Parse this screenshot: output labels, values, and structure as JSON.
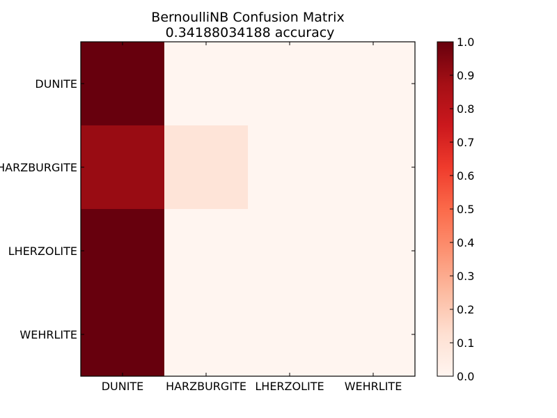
{
  "chart_data": {
    "type": "heatmap",
    "title": "BernoulliNB Confusion Matrix",
    "subtitle": "0.34188034188 accuracy",
    "row_labels": [
      "DUNITE",
      "HARZBURGITE",
      "LHERZOLITE",
      "WEHRLITE"
    ],
    "col_labels": [
      "DUNITE",
      "HARZBURGITE",
      "LHERZOLITE",
      "WEHRLITE"
    ],
    "matrix": [
      [
        1.0,
        0.0,
        0.0,
        0.0
      ],
      [
        0.9,
        0.1,
        0.0,
        0.0
      ],
      [
        1.0,
        0.0,
        0.0,
        0.0
      ],
      [
        1.0,
        0.0,
        0.0,
        0.0
      ]
    ],
    "colormap": "Reds",
    "colorbar": {
      "range": [
        0.0,
        1.0
      ],
      "ticks": [
        "0.0",
        "0.1",
        "0.2",
        "0.3",
        "0.4",
        "0.5",
        "0.6",
        "0.7",
        "0.8",
        "0.9",
        "1.0"
      ]
    },
    "grid": false
  }
}
